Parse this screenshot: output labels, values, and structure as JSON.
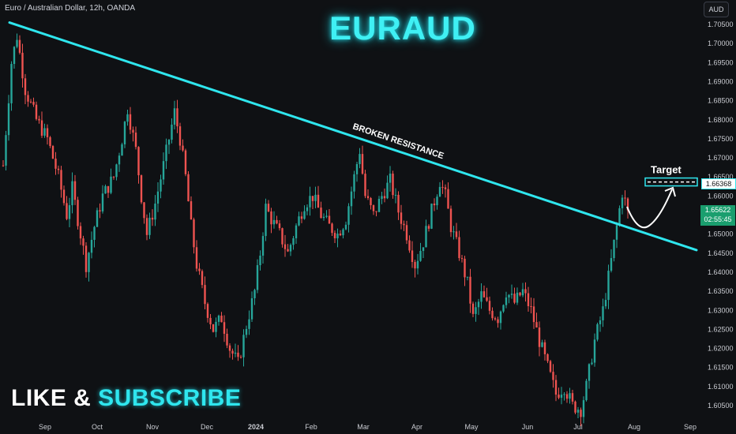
{
  "header": {
    "symbol_text": "Euro / Australian Dollar, 12h, OANDA"
  },
  "title": "EURAUD",
  "currency_button": "AUD",
  "cta": {
    "like": "LIKE & ",
    "subscribe": "SUBSCRIBE"
  },
  "annotations": {
    "broken_resistance": "BROKEN RESISTANCE",
    "target": "Target"
  },
  "current_price": {
    "value": "1.65622",
    "countdown": "02:55:45"
  },
  "target_price": "1.66368",
  "colors": {
    "up": "#26a69a",
    "down": "#ef5350",
    "accent": "#2fe6ee",
    "label": "#1a9e6e"
  },
  "chart_data": {
    "type": "candlestick",
    "symbol": "EURAUD",
    "interval": "12h",
    "source": "OANDA",
    "ylim": [
      1.6015,
      1.709
    ],
    "yticks": [
      "1.70500",
      "1.70000",
      "1.69500",
      "1.69000",
      "1.68500",
      "1.68000",
      "1.67500",
      "1.67000",
      "1.66500",
      "1.66000",
      "1.65500",
      "1.65000",
      "1.64500",
      "1.64000",
      "1.63500",
      "1.63000",
      "1.62500",
      "1.62000",
      "1.61500",
      "1.61000",
      "1.60500"
    ],
    "xticks": [
      "Sep",
      "Oct",
      "Nov",
      "Dec",
      "2024",
      "Feb",
      "Mar",
      "Apr",
      "May",
      "Jun",
      "Jul",
      "Aug",
      "Sep"
    ],
    "path_points": [
      [
        0,
        1.668
      ],
      [
        3,
        1.695
      ],
      [
        5,
        1.702
      ],
      [
        8,
        1.688
      ],
      [
        12,
        1.68
      ],
      [
        16,
        1.675
      ],
      [
        20,
        1.665
      ],
      [
        23,
        1.655
      ],
      [
        25,
        1.662
      ],
      [
        28,
        1.65
      ],
      [
        30,
        1.642
      ],
      [
        33,
        1.652
      ],
      [
        36,
        1.66
      ],
      [
        40,
        1.665
      ],
      [
        43,
        1.675
      ],
      [
        45,
        1.683
      ],
      [
        48,
        1.672
      ],
      [
        50,
        1.66
      ],
      [
        52,
        1.65
      ],
      [
        55,
        1.658
      ],
      [
        58,
        1.668
      ],
      [
        60,
        1.675
      ],
      [
        62,
        1.682
      ],
      [
        64,
        1.675
      ],
      [
        66,
        1.665
      ],
      [
        68,
        1.652
      ],
      [
        70,
        1.642
      ],
      [
        73,
        1.632
      ],
      [
        76,
        1.625
      ],
      [
        79,
        1.628
      ],
      [
        82,
        1.62
      ],
      [
        85,
        1.616
      ],
      [
        88,
        1.626
      ],
      [
        91,
        1.635
      ],
      [
        93,
        1.645
      ],
      [
        95,
        1.657
      ],
      [
        97,
        1.654
      ],
      [
        100,
        1.65
      ],
      [
        103,
        1.645
      ],
      [
        106,
        1.652
      ],
      [
        109,
        1.658
      ],
      [
        112,
        1.66
      ],
      [
        115,
        1.655
      ],
      [
        118,
        1.652
      ],
      [
        121,
        1.65
      ],
      [
        124,
        1.654
      ],
      [
        127,
        1.665
      ],
      [
        129,
        1.672
      ],
      [
        131,
        1.66
      ],
      [
        134,
        1.655
      ],
      [
        137,
        1.66
      ],
      [
        140,
        1.664
      ],
      [
        143,
        1.656
      ],
      [
        146,
        1.65
      ],
      [
        149,
        1.642
      ],
      [
        152,
        1.648
      ],
      [
        155,
        1.656
      ],
      [
        158,
        1.664
      ],
      [
        160,
        1.66
      ],
      [
        162,
        1.652
      ],
      [
        165,
        1.645
      ],
      [
        168,
        1.637
      ],
      [
        170,
        1.628
      ],
      [
        173,
        1.634
      ],
      [
        176,
        1.63
      ],
      [
        179,
        1.628
      ],
      [
        182,
        1.635
      ],
      [
        185,
        1.632
      ],
      [
        188,
        1.635
      ],
      [
        191,
        1.63
      ],
      [
        194,
        1.622
      ],
      [
        197,
        1.615
      ],
      [
        200,
        1.608
      ],
      [
        203,
        1.61
      ],
      [
        206,
        1.605
      ],
      [
        209,
        1.604
      ],
      [
        211,
        1.61
      ],
      [
        214,
        1.622
      ],
      [
        217,
        1.63
      ],
      [
        220,
        1.643
      ],
      [
        222,
        1.652
      ],
      [
        224,
        1.661
      ],
      [
        226,
        1.656
      ]
    ],
    "candle_count": 227,
    "current_price": 1.65622,
    "target_price": 1.66368,
    "trendline": [
      [
        0,
        1.7055
      ],
      [
        242,
        1.6458
      ]
    ],
    "annotations": [
      "BROKEN RESISTANCE",
      "Target"
    ]
  }
}
